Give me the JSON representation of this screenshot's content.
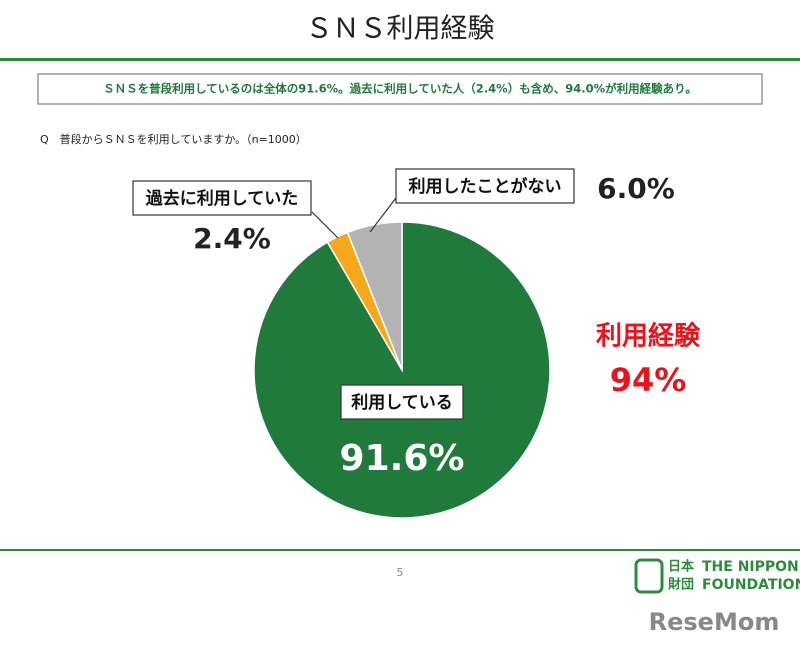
{
  "chart_data": {
    "type": "pie",
    "title": "ＳＮＳ利用経験",
    "subtitle": "ＳＮＳを普段利用しているのは全体の91.6%。過去に利用していた人（2.4%）も含め、94.0%が利用経験あり。",
    "question": "Q　普段からＳＮＳを利用していますか。（n=1000）",
    "categories": [
      "利用している",
      "過去に利用していた",
      "利用したことがない"
    ],
    "values": [
      91.6,
      2.4,
      6.0
    ],
    "value_labels": [
      "91.6%",
      "2.4%",
      "6.0%"
    ],
    "colors": [
      "#1f7a3c",
      "#f5a81c",
      "#b3b3b3"
    ],
    "annotation": {
      "label": "利用経験",
      "value": "94%",
      "color": "#e8141c"
    }
  },
  "footer": {
    "page": "5",
    "logo_jp_top": "日本",
    "logo_jp_bottom": "財団",
    "logo_en_top": "THE NIPPON",
    "logo_en_bottom": "FOUNDATION"
  },
  "watermark": "ReseMom"
}
